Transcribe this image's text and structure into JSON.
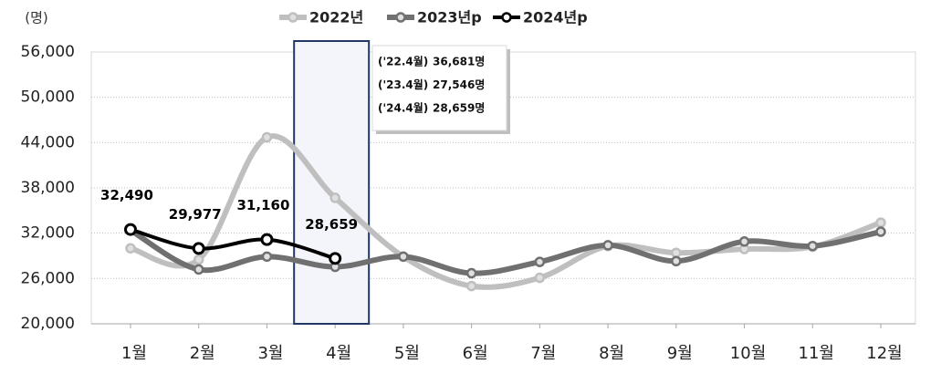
{
  "chart_data": {
    "type": "line",
    "unit_label": "(명)",
    "categories": [
      "1월",
      "2월",
      "3월",
      "4월",
      "5월",
      "6월",
      "7월",
      "8월",
      "9월",
      "10월",
      "11월",
      "12월"
    ],
    "series": [
      {
        "name": "2022년",
        "color": "#bfbfbf",
        "values": [
          30000,
          28500,
          44700,
          36681,
          28900,
          25000,
          26100,
          30300,
          29400,
          29900,
          30200,
          33400
        ]
      },
      {
        "name": "2023년p",
        "color": "#707070",
        "values": [
          32400,
          27200,
          28900,
          27546,
          28900,
          26700,
          28200,
          30400,
          28300,
          30900,
          30300,
          32200
        ]
      },
      {
        "name": "2024년p",
        "color": "#000000",
        "values": [
          32490,
          29977,
          31160,
          28659,
          null,
          null,
          null,
          null,
          null,
          null,
          null,
          null
        ],
        "value_labels": [
          "32,490",
          "29,977",
          "31,160",
          "28,659",
          null,
          null,
          null,
          null,
          null,
          null,
          null,
          null
        ]
      }
    ],
    "ylim": [
      20000,
      56000
    ],
    "yticks": [
      {
        "value": 20000,
        "label": "20,000"
      },
      {
        "value": 26000,
        "label": "26,000"
      },
      {
        "value": 32000,
        "label": "32,000"
      },
      {
        "value": 38000,
        "label": "38,000"
      },
      {
        "value": 44000,
        "label": "44,000"
      },
      {
        "value": 50000,
        "label": "50,000"
      },
      {
        "value": 56000,
        "label": "56,000"
      }
    ],
    "grid": true,
    "highlight_category": 3,
    "tooltip": [
      [
        "('22.4월)",
        "36,681명"
      ],
      [
        "('23.4월)",
        "27,546명"
      ],
      [
        "('24.4월)",
        "28,659명"
      ]
    ]
  }
}
